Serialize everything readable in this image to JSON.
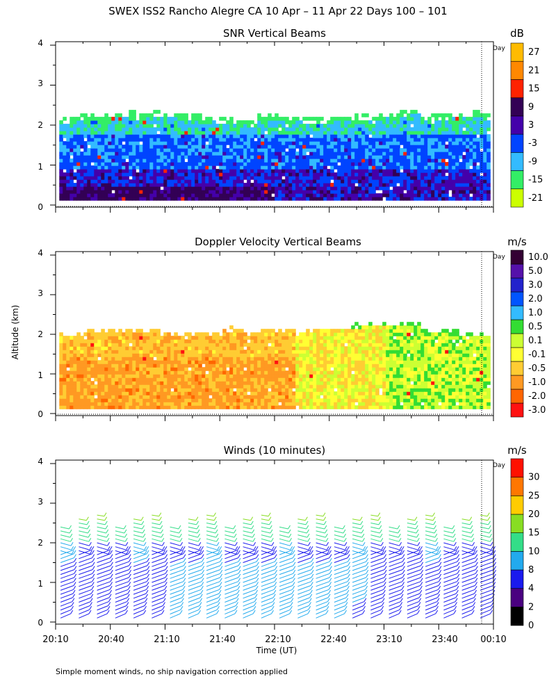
{
  "title": "SWEX ISS2 Rancho Alegre CA  10 Apr – 11 Apr 22 Days 100 – 101",
  "xlabel": "Time (UT)",
  "ylabel": "Altitude (km)",
  "x_ticks": [
    "20:10",
    "20:40",
    "21:10",
    "21:40",
    "22:10",
    "22:40",
    "23:10",
    "23:40",
    "00:10"
  ],
  "day_marker": "Day",
  "footnote": "Simple moment winds, no ship navigation correction applied",
  "chart_data": [
    {
      "type": "heatmap",
      "title": "SNR Vertical Beams",
      "xlabel": "Time (UT)",
      "ylabel": "Altitude (km)",
      "xlim_minutes": [
        0,
        240
      ],
      "ylim": [
        0,
        4
      ],
      "y_ticks": [
        0,
        1,
        2,
        3,
        4
      ],
      "colorbar": {
        "unit": "dB",
        "levels": [
          "-21",
          "-15",
          "-9",
          "-3",
          "3",
          "9",
          "15",
          "21",
          "27"
        ],
        "colors": [
          "#ccff00",
          "#33ee66",
          "#33bbff",
          "#0044ff",
          "#4400aa",
          "#330055",
          "#ff2200",
          "#ff8800",
          "#ffbb00"
        ]
      },
      "day_change_minutes": 232
    },
    {
      "type": "heatmap",
      "title": "Doppler Velocity Vertical Beams",
      "xlabel": "Time (UT)",
      "ylabel": "Altitude (km)",
      "xlim_minutes": [
        0,
        240
      ],
      "ylim": [
        0,
        4
      ],
      "y_ticks": [
        0,
        1,
        2,
        3,
        4
      ],
      "colorbar": {
        "unit": "m/s",
        "levels": [
          "-3.0",
          "-2.0",
          "-1.0",
          "-0.5",
          "-0.1",
          "0.1",
          "0.5",
          "1.0",
          "2.0",
          "3.0",
          "5.0",
          "10.0"
        ],
        "colors": [
          "#ff1111",
          "#ff6600",
          "#ff9922",
          "#ffcc33",
          "#ffff33",
          "#ccff33",
          "#33dd33",
          "#33bbff",
          "#0055ff",
          "#2222cc",
          "#5511aa",
          "#330033"
        ]
      },
      "day_change_minutes": 232
    },
    {
      "type": "barbs",
      "title": "Winds (10 minutes)",
      "xlabel": "Time (UT)",
      "ylabel": "Altitude (km)",
      "xlim_minutes": [
        0,
        240
      ],
      "ylim": [
        0,
        4
      ],
      "y_ticks": [
        0,
        1,
        2,
        3,
        4
      ],
      "colorbar": {
        "unit": "m/s",
        "levels": [
          "0",
          "2",
          "4",
          "8",
          "10",
          "15",
          "20",
          "25",
          "30"
        ],
        "colors": [
          "#000000",
          "#4a0080",
          "#1a1aee",
          "#22aaee",
          "#33dd88",
          "#88dd22",
          "#ffcc00",
          "#ff7700",
          "#ff1100"
        ]
      },
      "profile_times_minutes": [
        5,
        15,
        25,
        35,
        45,
        55,
        65,
        75,
        85,
        95,
        105,
        115,
        125,
        135,
        145,
        155,
        165,
        175,
        185,
        195,
        205,
        215,
        225,
        235
      ],
      "day_change_minutes": 232
    }
  ]
}
